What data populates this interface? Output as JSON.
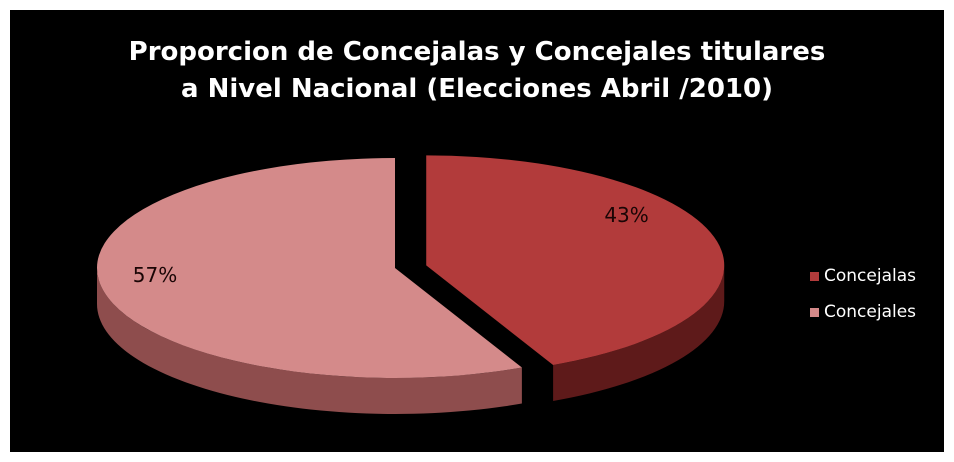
{
  "chart_data": {
    "type": "pie",
    "title_lines": [
      "Proporcion de Concejalas y Concejales titulares",
      "a Nivel Nacional (Elecciones Abril /2010)"
    ],
    "slices": [
      {
        "name": "Concejalas",
        "value": 43,
        "label": "43%",
        "color": "#b23b3b",
        "side_color": "#5e1a1a",
        "exploded": true
      },
      {
        "name": "Concejales",
        "value": 57,
        "label": "57%",
        "color": "#d48a8a",
        "side_color": "#8e4d4d",
        "exploded": false
      }
    ],
    "legend_position": "right",
    "style": "3d-exploded"
  }
}
